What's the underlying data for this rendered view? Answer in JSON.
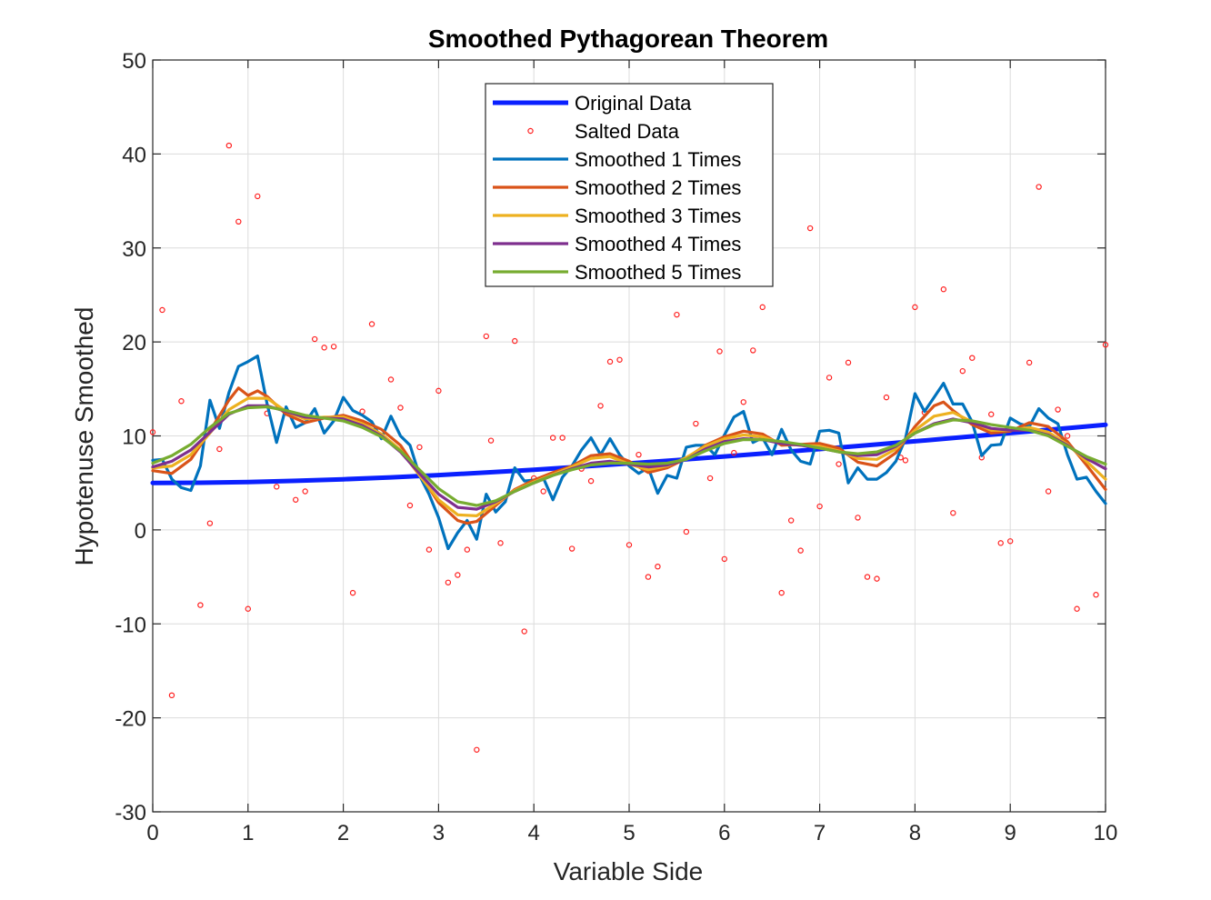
{
  "chart_data": {
    "type": "line",
    "title": "Smoothed Pythagorean Theorem",
    "xlabel": "Variable Side",
    "ylabel": "Hypotenuse Smoothed",
    "xlim": [
      0,
      10
    ],
    "ylim": [
      -30,
      50
    ],
    "xticks": [
      "0",
      "1",
      "2",
      "3",
      "4",
      "5",
      "6",
      "7",
      "8",
      "9",
      "10"
    ],
    "yticks": [
      "-30",
      "-20",
      "-10",
      "0",
      "10",
      "20",
      "30",
      "40",
      "50"
    ],
    "grid": true,
    "legend_position": "top-center",
    "series": [
      {
        "name": "Original Data",
        "style": "line",
        "color": "#0a20ff",
        "x": [
          0,
          0.5,
          1,
          1.5,
          2,
          2.5,
          3,
          3.5,
          4,
          4.5,
          5,
          5.5,
          6,
          6.5,
          7,
          7.5,
          8,
          8.5,
          9,
          9.5,
          10
        ],
        "values": [
          5.0,
          5.02,
          5.1,
          5.22,
          5.39,
          5.59,
          5.83,
          6.1,
          6.4,
          6.73,
          7.07,
          7.43,
          7.81,
          8.2,
          8.6,
          9.01,
          9.43,
          9.86,
          10.3,
          10.74,
          11.18
        ]
      },
      {
        "name": "Salted Data",
        "style": "markers",
        "color": "#ff2020",
        "x": [
          0,
          0.1,
          0.2,
          0.3,
          0.5,
          0.6,
          0.7,
          0.8,
          0.9,
          1.0,
          1.1,
          1.2,
          1.3,
          1.5,
          1.6,
          1.7,
          1.8,
          1.9,
          2.1,
          2.2,
          2.3,
          2.5,
          2.6,
          2.7,
          2.8,
          2.9,
          3.0,
          3.1,
          3.2,
          3.3,
          3.4,
          3.5,
          3.55,
          3.65,
          3.8,
          3.9,
          4.0,
          4.1,
          4.2,
          4.3,
          4.4,
          4.5,
          4.6,
          4.7,
          4.8,
          4.9,
          5.0,
          5.1,
          5.2,
          5.3,
          5.5,
          5.6,
          5.7,
          5.85,
          5.95,
          6.0,
          6.1,
          6.2,
          6.3,
          6.4,
          6.6,
          6.7,
          6.8,
          6.9,
          7.0,
          7.1,
          7.2,
          7.3,
          7.4,
          7.5,
          7.6,
          7.7,
          7.85,
          7.9,
          8.0,
          8.1,
          8.3,
          8.4,
          8.5,
          8.6,
          8.7,
          8.8,
          8.9,
          9.0,
          9.2,
          9.3,
          9.4,
          9.5,
          9.6,
          9.7,
          9.9,
          10.0
        ],
        "values": [
          10.4,
          23.4,
          -17.6,
          13.7,
          -8.0,
          0.7,
          8.6,
          40.9,
          32.8,
          -8.4,
          35.5,
          12.4,
          4.6,
          3.2,
          4.1,
          20.3,
          19.4,
          19.5,
          -6.7,
          12.6,
          21.9,
          16.0,
          13.0,
          2.6,
          8.8,
          -2.1,
          14.8,
          -5.6,
          -4.8,
          -2.1,
          -23.4,
          20.6,
          9.5,
          -1.4,
          20.1,
          -10.8,
          5.5,
          4.1,
          9.8,
          9.8,
          -2.0,
          6.5,
          5.2,
          13.2,
          17.9,
          18.1,
          -1.6,
          8.0,
          -5.0,
          -3.9,
          22.9,
          -0.2,
          11.3,
          5.5,
          19.0,
          -3.1,
          8.2,
          13.6,
          19.1,
          23.7,
          -6.7,
          1.0,
          -2.2,
          32.1,
          2.5,
          16.2,
          7.0,
          17.8,
          1.3,
          -5.0,
          -5.2,
          14.1,
          7.7,
          7.4,
          23.7,
          12.5,
          25.6,
          1.8,
          16.9,
          18.3,
          7.7,
          12.3,
          -1.4,
          -1.2,
          17.8,
          36.5,
          4.1,
          12.8,
          10.0,
          -8.4,
          -6.9,
          19.7
        ]
      },
      {
        "name": "Smoothed 1 Times",
        "style": "line",
        "color": "#0072bd",
        "x": [
          0,
          0.1,
          0.2,
          0.3,
          0.4,
          0.5,
          0.6,
          0.7,
          0.8,
          0.9,
          1.0,
          1.1,
          1.2,
          1.3,
          1.4,
          1.5,
          1.6,
          1.7,
          1.8,
          1.9,
          2.0,
          2.1,
          2.2,
          2.3,
          2.4,
          2.5,
          2.6,
          2.7,
          2.8,
          2.9,
          3.0,
          3.1,
          3.2,
          3.3,
          3.4,
          3.5,
          3.6,
          3.7,
          3.8,
          3.9,
          4.0,
          4.1,
          4.2,
          4.3,
          4.4,
          4.5,
          4.6,
          4.7,
          4.8,
          4.9,
          5.0,
          5.1,
          5.2,
          5.3,
          5.4,
          5.5,
          5.6,
          5.7,
          5.8,
          5.9,
          6.0,
          6.1,
          6.2,
          6.3,
          6.4,
          6.5,
          6.6,
          6.7,
          6.8,
          6.9,
          7.0,
          7.1,
          7.2,
          7.3,
          7.4,
          7.5,
          7.6,
          7.7,
          7.8,
          7.9,
          8.0,
          8.1,
          8.2,
          8.3,
          8.4,
          8.5,
          8.6,
          8.7,
          8.8,
          8.9,
          9.0,
          9.1,
          9.2,
          9.3,
          9.4,
          9.5,
          9.6,
          9.7,
          9.8,
          9.9,
          10.0
        ],
        "values": [
          7.4,
          7.5,
          5.4,
          4.5,
          4.2,
          6.8,
          13.8,
          10.8,
          14.6,
          17.4,
          17.9,
          18.5,
          13.4,
          9.3,
          13.1,
          10.9,
          11.4,
          12.9,
          10.3,
          11.6,
          14.1,
          12.7,
          12.2,
          11.5,
          9.7,
          12.1,
          10.0,
          9.0,
          5.8,
          3.8,
          1.3,
          -2.0,
          -0.3,
          1.0,
          -1.0,
          3.8,
          1.9,
          3.0,
          6.6,
          5.2,
          5.3,
          5.5,
          3.2,
          5.6,
          6.8,
          8.5,
          9.8,
          8.0,
          9.7,
          8.0,
          6.8,
          6.0,
          6.6,
          3.9,
          5.8,
          5.5,
          8.8,
          9.0,
          9.0,
          8.0,
          10.1,
          12.0,
          12.6,
          9.3,
          9.8,
          8.0,
          10.7,
          8.5,
          7.3,
          7.0,
          10.5,
          10.6,
          10.3,
          5.0,
          6.6,
          5.4,
          5.4,
          6.1,
          7.3,
          9.7,
          14.5,
          12.6,
          14.1,
          15.6,
          13.4,
          13.4,
          11.5,
          7.9,
          9.0,
          9.1,
          11.9,
          11.3,
          11.0,
          12.9,
          11.9,
          11.3,
          8.0,
          5.4,
          5.6,
          4.1,
          2.8
        ]
      },
      {
        "name": "Smoothed 2 Times",
        "style": "line",
        "color": "#d95319",
        "x": [
          0,
          0.2,
          0.4,
          0.6,
          0.8,
          0.9,
          1.0,
          1.1,
          1.2,
          1.4,
          1.6,
          1.8,
          2.0,
          2.2,
          2.4,
          2.6,
          2.8,
          3.0,
          3.2,
          3.3,
          3.4,
          3.6,
          3.8,
          4.0,
          4.2,
          4.4,
          4.6,
          4.8,
          5.0,
          5.2,
          5.4,
          5.6,
          5.8,
          6.0,
          6.2,
          6.4,
          6.6,
          6.8,
          7.0,
          7.2,
          7.4,
          7.6,
          7.8,
          8.0,
          8.2,
          8.3,
          8.4,
          8.6,
          8.8,
          9.0,
          9.2,
          9.4,
          9.6,
          9.8,
          10.0
        ],
        "values": [
          6.3,
          6.0,
          7.5,
          10.5,
          13.8,
          15.1,
          14.3,
          14.8,
          14.2,
          12.3,
          11.4,
          11.9,
          12.2,
          11.6,
          10.7,
          9.0,
          6.0,
          2.9,
          1.0,
          0.7,
          0.9,
          2.6,
          4.3,
          5.3,
          6.1,
          6.8,
          7.9,
          8.1,
          7.3,
          6.1,
          6.6,
          7.6,
          9.0,
          9.9,
          10.5,
          10.2,
          9.0,
          9.1,
          9.2,
          8.7,
          7.2,
          6.8,
          8.2,
          11.0,
          13.2,
          13.6,
          12.7,
          11.2,
          10.3,
          10.5,
          11.4,
          11.0,
          9.4,
          6.9,
          4.3
        ]
      },
      {
        "name": "Smoothed 3 Times",
        "style": "line",
        "color": "#edb120",
        "x": [
          0,
          0.2,
          0.4,
          0.6,
          0.8,
          1.0,
          1.2,
          1.4,
          1.6,
          1.8,
          2.0,
          2.2,
          2.4,
          2.6,
          2.8,
          3.0,
          3.2,
          3.4,
          3.6,
          3.8,
          4.0,
          4.2,
          4.4,
          4.6,
          4.8,
          5.0,
          5.2,
          5.4,
          5.6,
          5.8,
          6.0,
          6.2,
          6.4,
          6.6,
          6.8,
          7.0,
          7.2,
          7.4,
          7.6,
          7.8,
          8.0,
          8.2,
          8.4,
          8.6,
          8.8,
          9.0,
          9.2,
          9.4,
          9.6,
          9.8,
          10.0
        ],
        "values": [
          6.6,
          6.8,
          8.0,
          10.3,
          12.8,
          14.0,
          14.0,
          12.6,
          11.8,
          12.0,
          12.0,
          11.3,
          10.2,
          8.5,
          5.8,
          3.2,
          1.6,
          1.5,
          2.8,
          4.2,
          5.1,
          5.9,
          6.7,
          7.6,
          7.8,
          7.0,
          6.4,
          6.8,
          7.7,
          8.9,
          9.7,
          10.1,
          9.9,
          9.2,
          9.0,
          8.9,
          8.4,
          7.6,
          7.5,
          8.6,
          10.6,
          12.1,
          12.5,
          11.5,
          10.6,
          10.6,
          10.9,
          10.4,
          9.1,
          7.3,
          5.4
        ]
      },
      {
        "name": "Smoothed 4 Times",
        "style": "line",
        "color": "#7e2f8e",
        "x": [
          0,
          0.2,
          0.4,
          0.6,
          0.8,
          1.0,
          1.2,
          1.4,
          1.6,
          1.8,
          2.0,
          2.2,
          2.4,
          2.6,
          2.8,
          3.0,
          3.2,
          3.4,
          3.6,
          3.8,
          4.0,
          4.2,
          4.4,
          4.6,
          4.8,
          5.0,
          5.2,
          5.4,
          5.6,
          5.8,
          6.0,
          6.2,
          6.4,
          6.6,
          6.8,
          7.0,
          7.2,
          7.4,
          7.6,
          7.8,
          8.0,
          8.2,
          8.4,
          8.6,
          8.8,
          9.0,
          9.2,
          9.4,
          9.6,
          9.8,
          10.0
        ],
        "values": [
          6.7,
          7.3,
          8.5,
          10.4,
          12.3,
          13.2,
          13.2,
          12.6,
          12.0,
          11.9,
          11.8,
          11.1,
          10.0,
          8.3,
          6.0,
          3.8,
          2.4,
          2.2,
          3.0,
          4.1,
          5.0,
          5.8,
          6.5,
          7.1,
          7.3,
          7.0,
          6.7,
          6.9,
          7.5,
          8.6,
          9.4,
          9.7,
          9.6,
          9.2,
          9.0,
          8.7,
          8.3,
          7.9,
          8.0,
          8.9,
          10.3,
          11.3,
          11.8,
          11.4,
          10.8,
          10.6,
          10.6,
          10.1,
          9.0,
          7.6,
          6.5
        ]
      },
      {
        "name": "Smoothed 5 Times",
        "style": "line",
        "color": "#77ac30",
        "x": [
          0,
          0.2,
          0.4,
          0.6,
          0.8,
          1.0,
          1.2,
          1.4,
          1.6,
          1.8,
          2.0,
          2.2,
          2.4,
          2.6,
          2.8,
          3.0,
          3.2,
          3.4,
          3.6,
          3.8,
          4.0,
          4.2,
          4.4,
          4.6,
          4.8,
          5.0,
          5.2,
          5.4,
          5.6,
          5.8,
          6.0,
          6.2,
          6.4,
          6.6,
          6.8,
          7.0,
          7.2,
          7.4,
          7.6,
          7.8,
          8.0,
          8.2,
          8.4,
          8.6,
          8.8,
          9.0,
          9.2,
          9.4,
          9.6,
          9.8,
          10.0
        ],
        "values": [
          7.1,
          7.9,
          9.1,
          10.9,
          12.4,
          13.0,
          13.1,
          12.7,
          12.2,
          11.9,
          11.6,
          10.9,
          9.9,
          8.4,
          6.4,
          4.4,
          3.0,
          2.6,
          3.1,
          4.1,
          5.0,
          5.8,
          6.4,
          6.9,
          7.1,
          7.1,
          7.0,
          7.1,
          7.5,
          8.4,
          9.2,
          9.6,
          9.6,
          9.4,
          9.1,
          8.7,
          8.3,
          8.1,
          8.3,
          9.0,
          10.3,
          11.2,
          11.7,
          11.6,
          11.2,
          10.9,
          10.6,
          10.0,
          8.9,
          7.8,
          7.0
        ]
      }
    ]
  }
}
